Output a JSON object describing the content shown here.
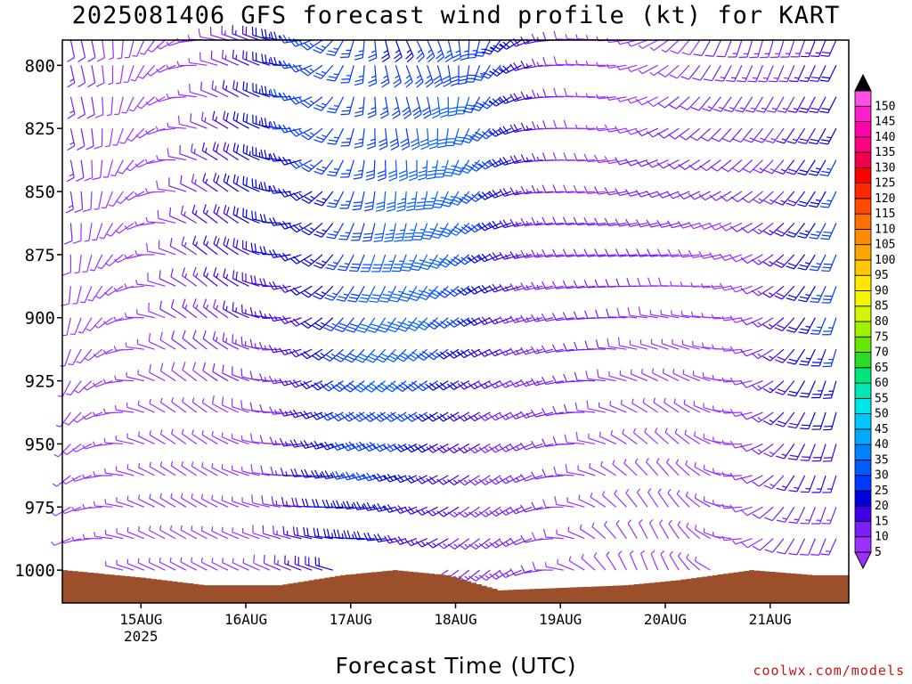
{
  "chart_data": {
    "type": "wind-barb-profile",
    "title": "2025081406 GFS forecast wind profile (kt) for KART",
    "xlabel": "Forecast Time (UTC)",
    "x_ticks": [
      "15AUG",
      "16AUG",
      "17AUG",
      "18AUG",
      "19AUG",
      "20AUG",
      "21AUG"
    ],
    "x_year_label": "2025",
    "x_range_days": [
      14.25,
      21.75
    ],
    "y_axis": "pressure (hPa), inverted",
    "y_ticks": [
      800,
      825,
      850,
      875,
      900,
      925,
      950,
      975,
      1000
    ],
    "y_range": [
      790,
      1013
    ],
    "levels": [
      790,
      800,
      812.5,
      825,
      837.5,
      850,
      862.5,
      875,
      887.5,
      900,
      912.5,
      925,
      937.5,
      950,
      962.5,
      975,
      987.5,
      1000
    ],
    "surface_pressure_hPa": [
      {
        "day": 14.25,
        "p": 1000
      },
      {
        "day": 15.0,
        "p": 1003
      },
      {
        "day": 15.6,
        "p": 1006
      },
      {
        "day": 16.3,
        "p": 1006
      },
      {
        "day": 16.9,
        "p": 1002
      },
      {
        "day": 17.4,
        "p": 1000
      },
      {
        "day": 17.9,
        "p": 1002
      },
      {
        "day": 18.4,
        "p": 1008
      },
      {
        "day": 19.0,
        "p": 1007
      },
      {
        "day": 19.6,
        "p": 1006
      },
      {
        "day": 20.1,
        "p": 1004
      },
      {
        "day": 20.8,
        "p": 1000
      },
      {
        "day": 21.4,
        "p": 1002
      },
      {
        "day": 21.75,
        "p": 1002
      }
    ],
    "wind_sample": [
      {
        "time_days": 17.0,
        "level": 800,
        "speed_kt": 35,
        "dir_deg": 290
      },
      {
        "time_days": 17.0,
        "level": 850,
        "speed_kt": 25,
        "dir_deg": 280
      },
      {
        "time_days": 17.0,
        "level": 950,
        "speed_kt": 30,
        "dir_deg": 270
      },
      {
        "time_days": 18.5,
        "level": 850,
        "speed_kt": 20,
        "dir_deg": 200
      },
      {
        "time_days": 18.5,
        "level": 950,
        "speed_kt": 35,
        "dir_deg": 240
      },
      {
        "time_days": 19.5,
        "level": 900,
        "speed_kt": 15,
        "dir_deg": 260
      },
      {
        "time_days": 20.5,
        "level": 925,
        "speed_kt": 10,
        "dir_deg": 170
      },
      {
        "time_days": 21.5,
        "level": 850,
        "speed_kt": 20,
        "dir_deg": 240
      }
    ],
    "colorbar": {
      "values": [
        5,
        10,
        15,
        20,
        25,
        30,
        35,
        40,
        45,
        50,
        55,
        60,
        65,
        70,
        75,
        80,
        85,
        90,
        95,
        100,
        105,
        110,
        115,
        120,
        125,
        130,
        135,
        140,
        145,
        150
      ],
      "colors": [
        "#9b30ff",
        "#7a1ff5",
        "#4000e6",
        "#0000dc",
        "#0038ff",
        "#005aff",
        "#0082ff",
        "#00aaff",
        "#00c8ff",
        "#00e6e6",
        "#00e6b4",
        "#00e678",
        "#28dc28",
        "#64e600",
        "#a0f000",
        "#d2f500",
        "#f5f500",
        "#ffe600",
        "#ffc800",
        "#ffa500",
        "#ff8c00",
        "#ff6e00",
        "#ff4b00",
        "#ff2800",
        "#ff0000",
        "#f0004b",
        "#ff0080",
        "#ff00aa",
        "#ff1ec8",
        "#ff50e6"
      ]
    }
  },
  "credit": "coolwx.com/models"
}
